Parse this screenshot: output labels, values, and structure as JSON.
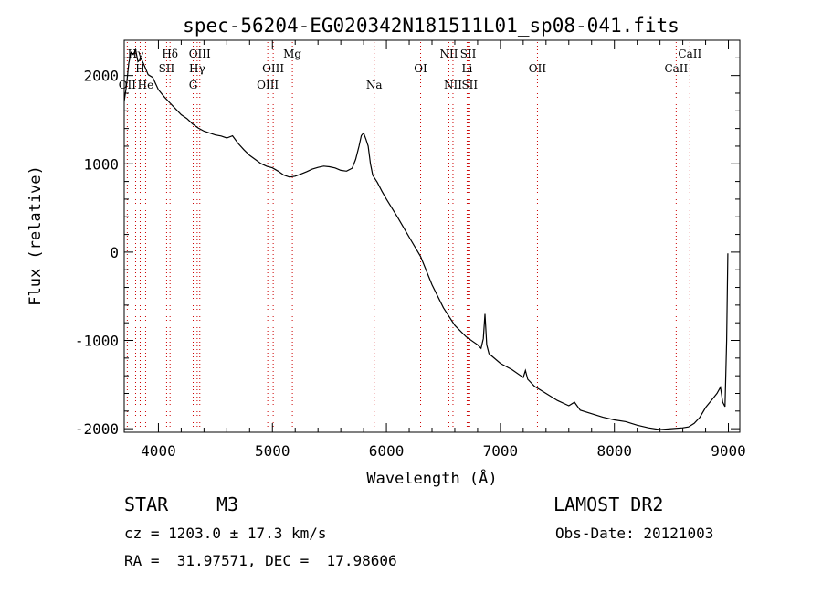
{
  "chart_data": {
    "type": "line",
    "title": "spec-56204-EG020342N181511L01_sp08-041.fits",
    "xlabel": "Wavelength (Å)",
    "ylabel": "Flux (relative)",
    "xlim": [
      3700,
      9100
    ],
    "ylim": [
      -2040,
      2400
    ],
    "x_ticks": [
      4000,
      5000,
      6000,
      7000,
      8000,
      9000
    ],
    "y_ticks": [
      -2000,
      -1000,
      0,
      1000,
      2000
    ],
    "grid": false,
    "series": [
      {
        "points": [
          [
            3700,
            1700
          ],
          [
            3720,
            1900
          ],
          [
            3740,
            2150
          ],
          [
            3760,
            2300
          ],
          [
            3780,
            2200
          ],
          [
            3800,
            2280
          ],
          [
            3820,
            2150
          ],
          [
            3850,
            2180
          ],
          [
            3880,
            2080
          ],
          [
            3910,
            2060
          ],
          [
            3950,
            1980
          ],
          [
            4000,
            1850
          ],
          [
            4050,
            1780
          ],
          [
            4100,
            1720
          ],
          [
            4150,
            1660
          ],
          [
            4200,
            1600
          ],
          [
            4250,
            1560
          ],
          [
            4300,
            1500
          ],
          [
            4350,
            1450
          ],
          [
            4400,
            1410
          ],
          [
            4450,
            1380
          ],
          [
            4500,
            1350
          ],
          [
            4550,
            1330
          ],
          [
            4600,
            1300
          ],
          [
            4650,
            1320
          ],
          [
            4700,
            1230
          ],
          [
            4750,
            1160
          ],
          [
            4800,
            1100
          ],
          [
            4850,
            1060
          ],
          [
            4900,
            1020
          ],
          [
            4950,
            1000
          ],
          [
            5000,
            990
          ],
          [
            5050,
            960
          ],
          [
            5100,
            920
          ],
          [
            5150,
            900
          ],
          [
            5200,
            910
          ],
          [
            5250,
            930
          ],
          [
            5300,
            950
          ],
          [
            5350,
            970
          ],
          [
            5400,
            980
          ],
          [
            5450,
            985
          ],
          [
            5500,
            970
          ],
          [
            5550,
            950
          ],
          [
            5600,
            920
          ],
          [
            5650,
            910
          ],
          [
            5700,
            950
          ],
          [
            5730,
            1050
          ],
          [
            5760,
            1200
          ],
          [
            5780,
            1320
          ],
          [
            5800,
            1350
          ],
          [
            5820,
            1280
          ],
          [
            5840,
            1200
          ],
          [
            5860,
            1000
          ],
          [
            5880,
            870
          ],
          [
            5920,
            790
          ],
          [
            5960,
            690
          ],
          [
            6000,
            600
          ],
          [
            6100,
            390
          ],
          [
            6200,
            170
          ],
          [
            6300,
            -50
          ],
          [
            6400,
            -370
          ],
          [
            6500,
            -630
          ],
          [
            6600,
            -830
          ],
          [
            6700,
            -960
          ],
          [
            6800,
            -1050
          ],
          [
            6830,
            -1090
          ],
          [
            6850,
            -980
          ],
          [
            6865,
            -700
          ],
          [
            6880,
            -1050
          ],
          [
            6900,
            -1150
          ],
          [
            7000,
            -1260
          ],
          [
            7100,
            -1330
          ],
          [
            7200,
            -1420
          ],
          [
            7220,
            -1340
          ],
          [
            7240,
            -1440
          ],
          [
            7300,
            -1520
          ],
          [
            7400,
            -1600
          ],
          [
            7500,
            -1680
          ],
          [
            7600,
            -1740
          ],
          [
            7650,
            -1700
          ],
          [
            7700,
            -1790
          ],
          [
            7800,
            -1830
          ],
          [
            7900,
            -1870
          ],
          [
            8000,
            -1900
          ],
          [
            8100,
            -1920
          ],
          [
            8200,
            -1960
          ],
          [
            8300,
            -1990
          ],
          [
            8400,
            -2010
          ],
          [
            8500,
            -2000
          ],
          [
            8600,
            -1990
          ],
          [
            8650,
            -1980
          ],
          [
            8700,
            -1940
          ],
          [
            8750,
            -1870
          ],
          [
            8800,
            -1760
          ],
          [
            8850,
            -1680
          ],
          [
            8900,
            -1600
          ],
          [
            8930,
            -1530
          ],
          [
            8950,
            -1700
          ],
          [
            8970,
            -1750
          ],
          [
            8985,
            -1000
          ],
          [
            8995,
            -20
          ],
          [
            9000,
            -20
          ]
        ]
      }
    ],
    "spectral_lines": [
      {
        "label": "Hγ",
        "x": 3800,
        "tier": 1
      },
      {
        "label": "H",
        "x": 3840,
        "tier": 2
      },
      {
        "label": "OII",
        "x": 3727,
        "tier": 3
      },
      {
        "label": "He",
        "x": 3888,
        "tier": 3
      },
      {
        "label": "Hδ",
        "x": 4102,
        "tier": 1
      },
      {
        "label": "SII",
        "x": 4072,
        "tier": 2
      },
      {
        "label": "OIII",
        "x": 4363,
        "tier": 1
      },
      {
        "label": "Hγ",
        "x": 4340,
        "tier": 2
      },
      {
        "label": "G",
        "x": 4305,
        "tier": 3
      },
      {
        "label": "OIII",
        "x": 5007,
        "tier": 2
      },
      {
        "label": "OIII",
        "x": 4959,
        "tier": 3
      },
      {
        "label": "Mg",
        "x": 5175,
        "tier": 1
      },
      {
        "label": "Na",
        "x": 5893,
        "tier": 3
      },
      {
        "label": "OI",
        "x": 6300,
        "tier": 2
      },
      {
        "label": "NII",
        "x": 6548,
        "tier": 1
      },
      {
        "label": "SII",
        "x": 6717,
        "tier": 1
      },
      {
        "label": "Li",
        "x": 6708,
        "tier": 2
      },
      {
        "label": "NII",
        "x": 6584,
        "tier": 3
      },
      {
        "label": "SII",
        "x": 6731,
        "tier": 3
      },
      {
        "label": "OII",
        "x": 7325,
        "tier": 2
      },
      {
        "label": "CaII",
        "x": 8662,
        "tier": 1
      },
      {
        "label": "CaII",
        "x": 8542,
        "tier": 2
      }
    ]
  },
  "info": {
    "object_class": "STAR",
    "subclass": "M3",
    "survey": "LAMOST DR2",
    "cz": "cz = 1203.0 ± 17.3 km/s",
    "obs_date": "Obs-Date: 20121003",
    "coords": "RA =  31.97571, DEC =  17.98606"
  },
  "colors": {
    "line": "#000000",
    "marker": "#cc0000"
  }
}
